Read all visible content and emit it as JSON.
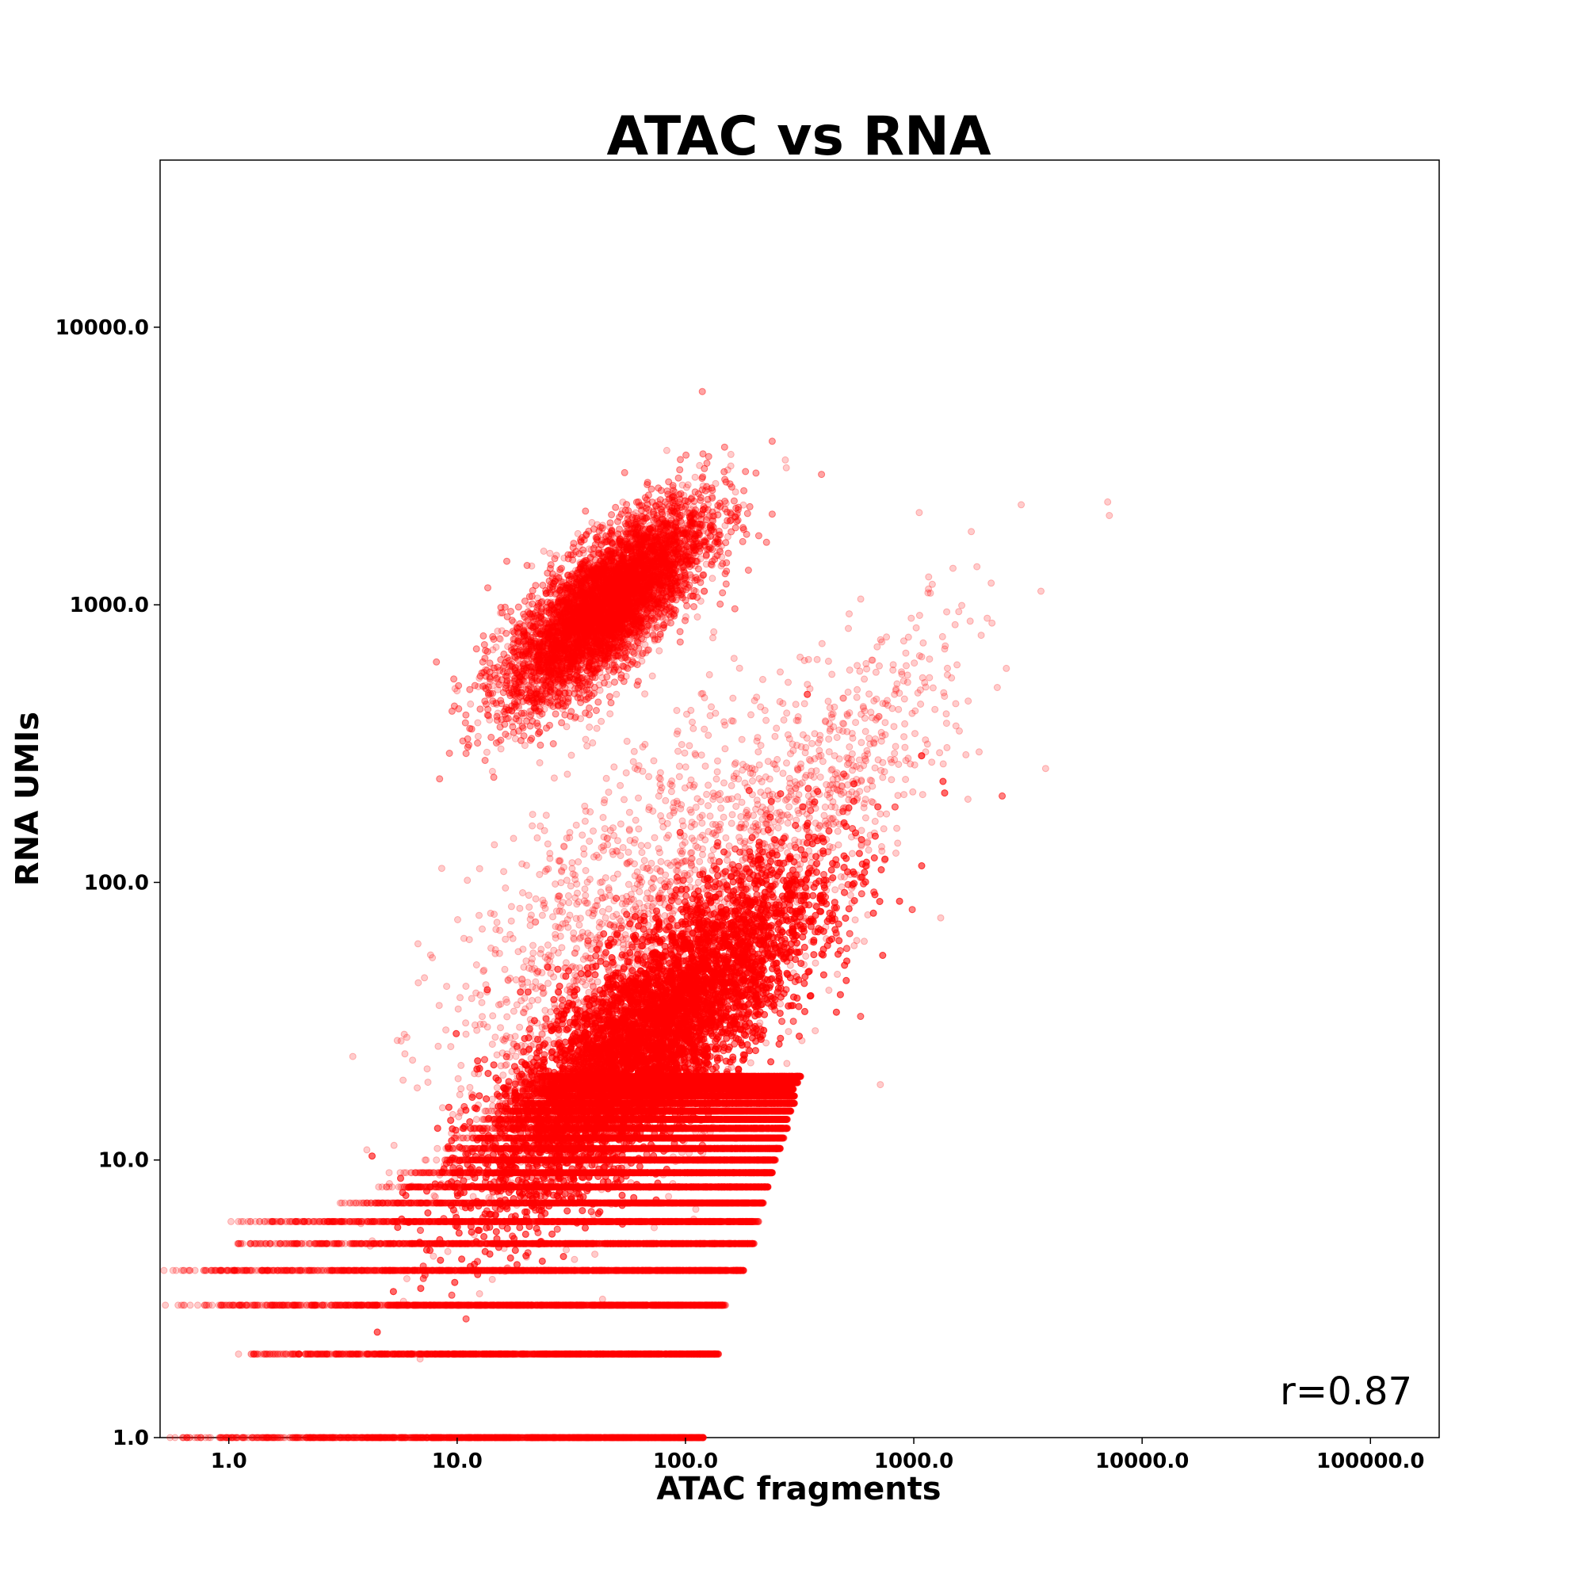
{
  "chart_data": {
    "type": "scatter",
    "title": "ATAC vs RNA",
    "xlabel": "ATAC fragments",
    "ylabel": "RNA UMIs",
    "xscale": "log",
    "yscale": "log",
    "xlim": [
      0.5,
      200000
    ],
    "ylim": [
      1,
      40000
    ],
    "x_ticks": [
      1,
      10,
      100,
      1000,
      10000,
      100000
    ],
    "x_tick_labels": [
      "1.0",
      "10.0",
      "100.0",
      "1000.0",
      "10000.0",
      "100000.0"
    ],
    "y_ticks": [
      1,
      10,
      100,
      1000,
      10000
    ],
    "y_tick_labels": [
      "1.0",
      "10.0",
      "100.0",
      "1000.0",
      "10000.0"
    ],
    "grid": false,
    "point_color": "#ff0000",
    "point_alpha": 0.2,
    "annotation": "r=0.87",
    "annotation_position": "bottom-right",
    "series": [
      {
        "clusters": [
          {
            "cx": 45,
            "cy": 1000,
            "sx": 0.22,
            "sy": 0.18,
            "rho": 0.75,
            "count": 9000
          },
          {
            "cx": 70,
            "cy": 28,
            "sx": 0.36,
            "sy": 0.3,
            "rho": 0.8,
            "count": 20000
          },
          {
            "cx": 60,
            "cy": 55,
            "sx": 0.42,
            "sy": 0.42,
            "rho": 0.55,
            "count": 1800
          },
          {
            "cx": 400,
            "cy": 200,
            "sx": 0.35,
            "sy": 0.35,
            "rho": 0.8,
            "count": 600
          }
        ],
        "discrete_rows": [
          {
            "y": 1,
            "xmin": 0.5,
            "xmax": 120,
            "count": 1400
          },
          {
            "y": 2,
            "xmin": 1,
            "xmax": 140,
            "count": 1400
          },
          {
            "y": 3,
            "xmin": 0.5,
            "xmax": 150,
            "count": 1400
          },
          {
            "y": 4,
            "xmin": 0.5,
            "xmax": 180,
            "count": 1400
          },
          {
            "y": 5,
            "xmin": 1,
            "xmax": 200,
            "count": 1400
          },
          {
            "y": 6,
            "xmin": 1,
            "xmax": 210,
            "count": 1400
          },
          {
            "y": 7,
            "xmin": 3,
            "xmax": 220,
            "count": 1400
          },
          {
            "y": 8,
            "xmin": 4,
            "xmax": 230,
            "count": 1400
          },
          {
            "y": 9,
            "xmin": 5,
            "xmax": 240,
            "count": 1400
          },
          {
            "y": 10,
            "xmin": 7,
            "xmax": 250,
            "count": 1400
          },
          {
            "y": 11,
            "xmin": 8,
            "xmax": 260,
            "count": 1300
          },
          {
            "y": 12,
            "xmin": 9,
            "xmax": 270,
            "count": 1300
          },
          {
            "y": 13,
            "xmin": 10,
            "xmax": 280,
            "count": 1300
          },
          {
            "y": 14,
            "xmin": 12,
            "xmax": 280,
            "count": 1300
          },
          {
            "y": 15,
            "xmin": 13,
            "xmax": 290,
            "count": 1300
          },
          {
            "y": 16,
            "xmin": 14,
            "xmax": 300,
            "count": 1300
          },
          {
            "y": 17,
            "xmin": 15,
            "xmax": 300,
            "count": 1200
          },
          {
            "y": 18,
            "xmin": 16,
            "xmax": 300,
            "count": 1200
          },
          {
            "y": 19,
            "xmin": 17,
            "xmax": 310,
            "count": 1200
          },
          {
            "y": 20,
            "xmin": 18,
            "xmax": 320,
            "count": 1200
          }
        ]
      }
    ]
  }
}
